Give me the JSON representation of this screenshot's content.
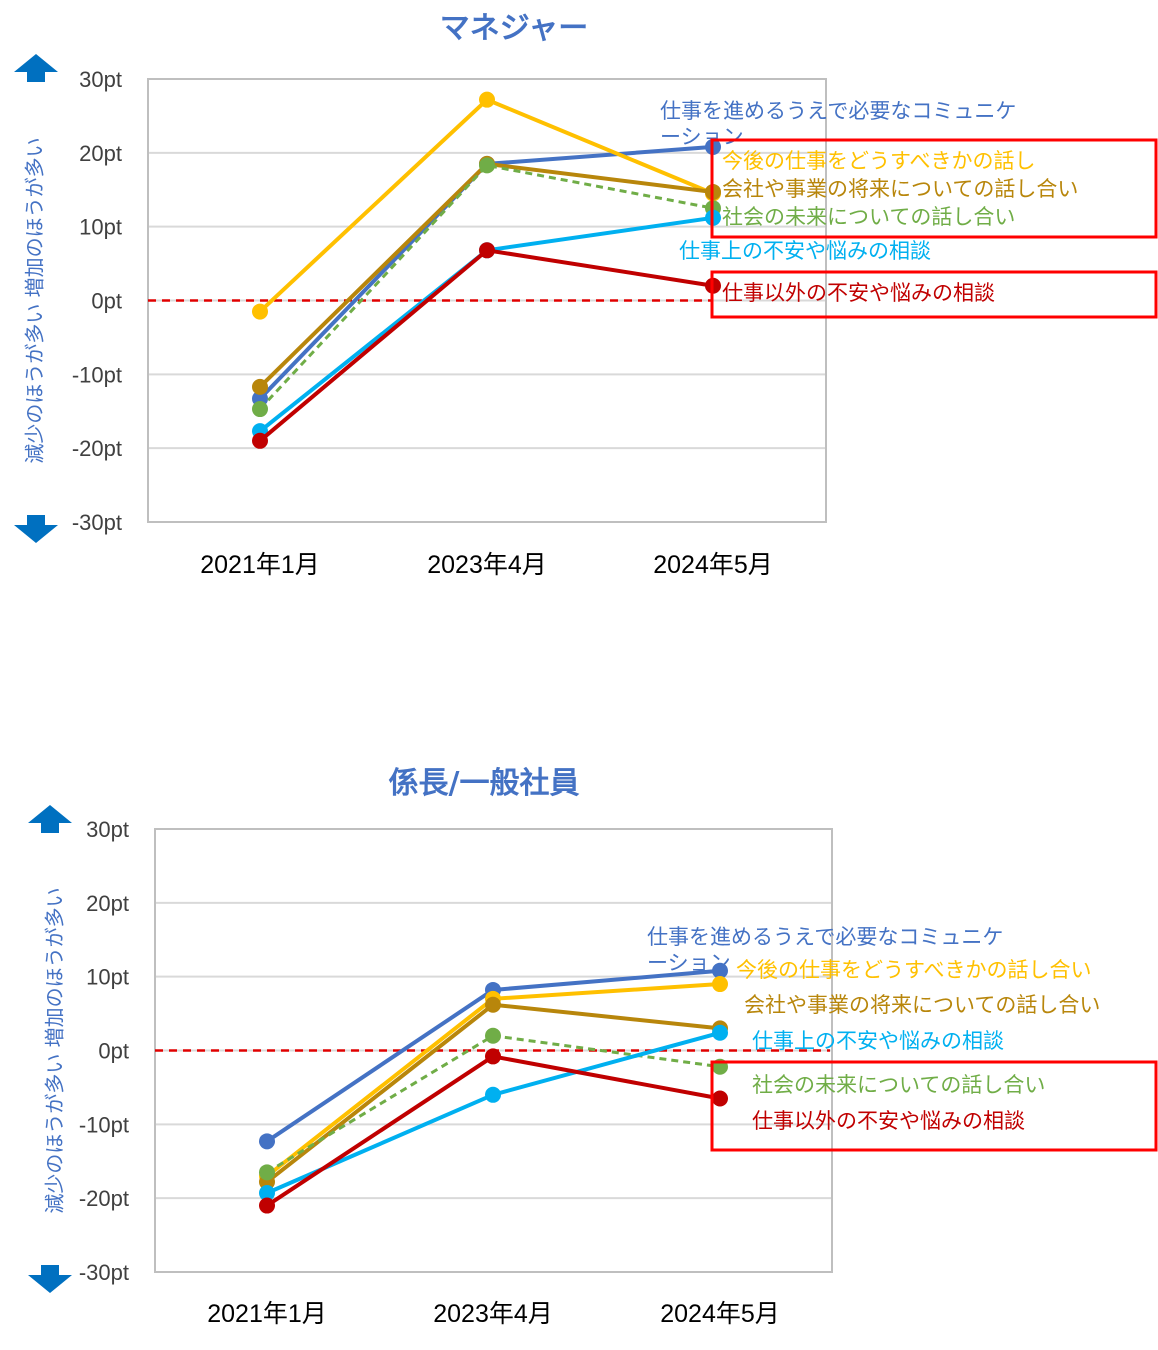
{
  "colors": {
    "communication": "#4472C4",
    "future_work": "#FFC000",
    "company_future": "#B8860B",
    "society_future": "#70AD47",
    "work_anxiety": "#00B0F0",
    "nonwork_anxiety": "#C00000",
    "zero_line": "#E00000",
    "highlight_box": "#FF0000",
    "arrow": "#0070C0"
  },
  "y_axis_label": "減少のほうが多い 増加のほうが多い",
  "chart_data": [
    {
      "type": "line",
      "title": "マネジャー",
      "categories": [
        "2021年1月",
        "2023年4月",
        "2024年5月"
      ],
      "ylim": [
        -30,
        30
      ],
      "yticks": [
        "30pt",
        "20pt",
        "10pt",
        "0pt",
        "-10pt",
        "-20pt",
        "-30pt"
      ],
      "ylabel": "減少のほうが多い 増加のほうが多い",
      "series": [
        {
          "name": "仕事を進めるうえで必要なコミュニケーション",
          "color_key": "communication",
          "values": [
            -13.3,
            18.5,
            20.8
          ],
          "dashed": false
        },
        {
          "name": "今後の仕事をどうすべきかの話し",
          "color_key": "future_work",
          "values": [
            -1.5,
            27.2,
            14.5
          ],
          "dashed": false
        },
        {
          "name": "会社や事業の将来についての話し合い",
          "color_key": "company_future",
          "values": [
            -11.7,
            18.5,
            14.7
          ],
          "dashed": false
        },
        {
          "name": "社会の未来についての話し合い",
          "color_key": "society_future",
          "values": [
            -14.7,
            18.3,
            12.5
          ],
          "dashed": true
        },
        {
          "name": "仕事上の不安や悩みの相談",
          "color_key": "work_anxiety",
          "values": [
            -17.7,
            6.8,
            11.2
          ],
          "dashed": false
        },
        {
          "name": "仕事以外の不安や悩みの相談",
          "color_key": "nonwork_anxiety",
          "values": [
            -19.0,
            6.8,
            2.0
          ],
          "dashed": false
        }
      ],
      "series_labels": [
        {
          "text": "仕事を進めるうえで必要なコミュニケ",
          "color_key": "communication"
        },
        {
          "text": "ーション",
          "color_key": "communication"
        },
        {
          "text": "今後の仕事をどうすべきかの話し",
          "color_key": "future_work"
        },
        {
          "text": "会社や事業の将来についての話し合い",
          "color_key": "company_future"
        },
        {
          "text": "社会の未来についての話し合い",
          "color_key": "society_future"
        },
        {
          "text": "仕事上の不安や悩みの相談",
          "color_key": "work_anxiety"
        },
        {
          "text": "仕事以外の不安や悩みの相談",
          "color_key": "nonwork_anxiety"
        }
      ]
    },
    {
      "type": "line",
      "title": "係長/一般社員",
      "categories": [
        "2021年1月",
        "2023年4月",
        "2024年5月"
      ],
      "ylim": [
        -30,
        30
      ],
      "yticks": [
        "30pt",
        "20pt",
        "10pt",
        "0pt",
        "-10pt",
        "-20pt",
        "-30pt"
      ],
      "ylabel": "減少のほうが多い 増加のほうが多い",
      "series": [
        {
          "name": "仕事を進めるうえで必要なコミュニケーション",
          "color_key": "communication",
          "values": [
            -12.3,
            8.2,
            10.8
          ],
          "dashed": false
        },
        {
          "name": "今後の仕事をどうすべきかの話し合い",
          "color_key": "future_work",
          "values": [
            -17.0,
            7.0,
            9.0
          ],
          "dashed": false
        },
        {
          "name": "会社や事業の将来についての話し合い",
          "color_key": "company_future",
          "values": [
            -17.8,
            6.2,
            3.0
          ],
          "dashed": false
        },
        {
          "name": "社会の未来についての話し合い",
          "color_key": "society_future",
          "values": [
            -16.5,
            2.0,
            -2.2
          ],
          "dashed": true
        },
        {
          "name": "仕事上の不安や悩みの相談",
          "color_key": "work_anxiety",
          "values": [
            -19.3,
            -6.0,
            2.4
          ],
          "dashed": false
        },
        {
          "name": "仕事以外の不安や悩みの相談",
          "color_key": "nonwork_anxiety",
          "values": [
            -21.0,
            -0.8,
            -6.5
          ],
          "dashed": false
        }
      ],
      "series_labels": [
        {
          "text": "仕事を進めるうえで必要なコミュニケ",
          "color_key": "communication"
        },
        {
          "text": "ーション",
          "color_key": "communication"
        },
        {
          "text": "今後の仕事をどうすべきかの話し合い",
          "color_key": "future_work"
        },
        {
          "text": "会社や事業の将来についての話し合い",
          "color_key": "company_future"
        },
        {
          "text": "仕事上の不安や悩みの相談",
          "color_key": "work_anxiety"
        },
        {
          "text": "社会の未来についての話し合い",
          "color_key": "society_future"
        },
        {
          "text": "仕事以外の不安や悩みの相談",
          "color_key": "nonwork_anxiety"
        }
      ]
    }
  ]
}
